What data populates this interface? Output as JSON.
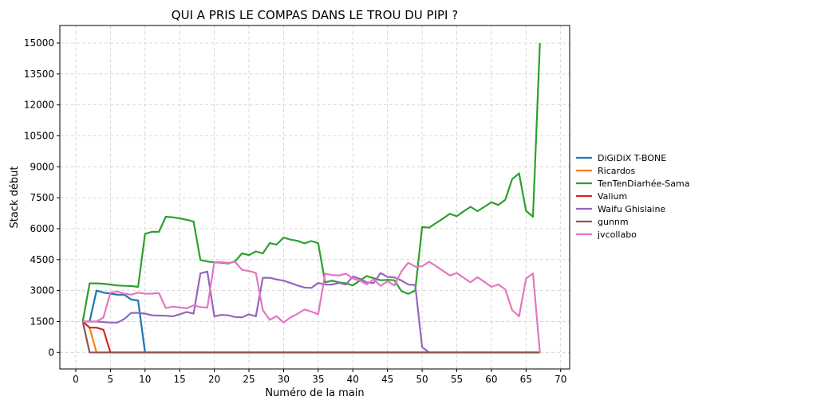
{
  "chart_data": {
    "type": "line",
    "title": "QUI A PRIS LE COMPAS DANS LE TROU DU PIPI ?",
    "xlabel": "Numéro de la main",
    "ylabel": "Stack début",
    "xlim": [
      -2.3,
      71.3
    ],
    "ylim": [
      -800,
      15850
    ],
    "xticks": [
      0,
      5,
      10,
      15,
      20,
      25,
      30,
      35,
      40,
      45,
      50,
      55,
      60,
      65,
      70
    ],
    "yticks": [
      0,
      1500,
      3000,
      4500,
      6000,
      7500,
      9000,
      10500,
      12000,
      13500,
      15000
    ],
    "grid": true,
    "legend_position": "right",
    "series": [
      {
        "name": "DiGiDiX T-BONE",
        "color": "#1f77b4",
        "x": [
          1,
          2,
          3,
          4,
          5,
          6,
          7,
          8,
          9,
          10,
          11,
          12,
          13,
          14,
          15,
          16,
          17,
          18,
          19,
          20,
          21,
          22,
          23,
          24,
          25,
          26,
          27,
          28,
          29,
          30,
          31,
          32,
          33,
          34,
          35,
          36,
          37,
          38,
          39,
          40,
          41,
          42,
          43,
          44,
          45,
          46,
          47,
          48,
          49,
          50,
          51,
          52,
          53,
          54,
          55,
          56,
          57,
          58,
          59,
          60,
          61,
          62,
          63,
          64,
          65,
          66,
          67
        ],
        "y": [
          1500,
          1500,
          3000,
          2900,
          2850,
          2800,
          2800,
          2570,
          2520,
          0,
          0,
          0,
          0,
          0,
          0,
          0,
          0,
          0,
          0,
          0,
          0,
          0,
          0,
          0,
          0,
          0,
          0,
          0,
          0,
          0,
          0,
          0,
          0,
          0,
          0,
          0,
          0,
          0,
          0,
          0,
          0,
          0,
          0,
          0,
          0,
          0,
          0,
          0,
          0,
          0,
          0,
          0,
          0,
          0,
          0,
          0,
          0,
          0,
          0,
          0,
          0,
          0,
          0,
          0,
          0,
          0,
          0
        ]
      },
      {
        "name": "Ricardos",
        "color": "#ff7f0e",
        "x": [
          1,
          2,
          3,
          4,
          5,
          6,
          7,
          8,
          9,
          10,
          11,
          12,
          13,
          14,
          15,
          16,
          17,
          18,
          19,
          20,
          21,
          22,
          23,
          24,
          25,
          26,
          27,
          28,
          29,
          30,
          31,
          32,
          33,
          34,
          35,
          36,
          37,
          38,
          39,
          40,
          41,
          42,
          43,
          44,
          45,
          46,
          47,
          48,
          49,
          50,
          51,
          52,
          53,
          54,
          55,
          56,
          57,
          58,
          59,
          60,
          61,
          62,
          63,
          64,
          65,
          66,
          67
        ],
        "y": [
          1500,
          1200,
          0,
          0,
          0,
          0,
          0,
          0,
          0,
          0,
          0,
          0,
          0,
          0,
          0,
          0,
          0,
          0,
          0,
          0,
          0,
          0,
          0,
          0,
          0,
          0,
          0,
          0,
          0,
          0,
          0,
          0,
          0,
          0,
          0,
          0,
          0,
          0,
          0,
          0,
          0,
          0,
          0,
          0,
          0,
          0,
          0,
          0,
          0,
          0,
          0,
          0,
          0,
          0,
          0,
          0,
          0,
          0,
          0,
          0,
          0,
          0,
          0,
          0,
          0,
          0,
          0
        ]
      },
      {
        "name": "TenTenDiarhée-Sama",
        "color": "#2ca02c",
        "x": [
          1,
          2,
          3,
          4,
          5,
          6,
          7,
          8,
          9,
          10,
          11,
          12,
          13,
          14,
          15,
          16,
          17,
          18,
          19,
          20,
          21,
          22,
          23,
          24,
          25,
          26,
          27,
          28,
          29,
          30,
          31,
          32,
          33,
          34,
          35,
          36,
          37,
          38,
          39,
          40,
          41,
          42,
          43,
          44,
          45,
          46,
          47,
          48,
          49,
          50,
          51,
          52,
          53,
          54,
          55,
          56,
          57,
          58,
          59,
          60,
          61,
          62,
          63,
          64,
          65,
          66,
          67
        ],
        "y": [
          1500,
          3350,
          3350,
          3330,
          3290,
          3250,
          3230,
          3220,
          3180,
          5750,
          5850,
          5850,
          6580,
          6550,
          6500,
          6430,
          6350,
          4480,
          4410,
          4370,
          4350,
          4310,
          4420,
          4800,
          4720,
          4900,
          4800,
          5300,
          5230,
          5570,
          5470,
          5410,
          5290,
          5400,
          5300,
          3400,
          3480,
          3400,
          3350,
          3250,
          3480,
          3700,
          3600,
          3500,
          3520,
          3500,
          2980,
          2840,
          3000,
          6080,
          6050,
          6270,
          6490,
          6720,
          6600,
          6840,
          7060,
          6850,
          7060,
          7280,
          7150,
          7400,
          8400,
          8680,
          6870,
          6580,
          15000
        ]
      },
      {
        "name": "Valium",
        "color": "#d62728",
        "x": [
          1,
          2,
          3,
          4,
          5,
          6,
          7,
          8,
          9,
          10,
          11,
          12,
          13,
          14,
          15,
          16,
          17,
          18,
          19,
          20,
          21,
          22,
          23,
          24,
          25,
          26,
          27,
          28,
          29,
          30,
          31,
          32,
          33,
          34,
          35,
          36,
          37,
          38,
          39,
          40,
          41,
          42,
          43,
          44,
          45,
          46,
          47,
          48,
          49,
          50,
          51,
          52,
          53,
          54,
          55,
          56,
          57,
          58,
          59,
          60,
          61,
          62,
          63,
          64,
          65,
          66,
          67
        ],
        "y": [
          1500,
          1200,
          1200,
          1100,
          0,
          0,
          0,
          0,
          0,
          0,
          0,
          0,
          0,
          0,
          0,
          0,
          0,
          0,
          0,
          0,
          0,
          0,
          0,
          0,
          0,
          0,
          0,
          0,
          0,
          0,
          0,
          0,
          0,
          0,
          0,
          0,
          0,
          0,
          0,
          0,
          0,
          0,
          0,
          0,
          0,
          0,
          0,
          0,
          0,
          0,
          0,
          0,
          0,
          0,
          0,
          0,
          0,
          0,
          0,
          0,
          0,
          0,
          0,
          0,
          0,
          0,
          0
        ]
      },
      {
        "name": "Waifu Ghislaine",
        "color": "#9467bd",
        "x": [
          1,
          2,
          3,
          4,
          5,
          6,
          7,
          8,
          9,
          10,
          11,
          12,
          13,
          14,
          15,
          16,
          17,
          18,
          19,
          20,
          21,
          22,
          23,
          24,
          25,
          26,
          27,
          28,
          29,
          30,
          31,
          32,
          33,
          34,
          35,
          36,
          37,
          38,
          39,
          40,
          41,
          42,
          43,
          44,
          45,
          46,
          47,
          48,
          49,
          50,
          51,
          52,
          53,
          54,
          55,
          56,
          57,
          58,
          59,
          60,
          61,
          62,
          63,
          64,
          65,
          66,
          67
        ],
        "y": [
          1500,
          1500,
          1500,
          1470,
          1450,
          1450,
          1620,
          1920,
          1920,
          1880,
          1800,
          1790,
          1780,
          1750,
          1850,
          1960,
          1880,
          3830,
          3920,
          1750,
          1820,
          1800,
          1720,
          1700,
          1850,
          1750,
          3620,
          3620,
          3540,
          3480,
          3370,
          3250,
          3150,
          3130,
          3370,
          3290,
          3290,
          3370,
          3290,
          3690,
          3570,
          3400,
          3370,
          3850,
          3660,
          3640,
          3490,
          3290,
          3270,
          260,
          0,
          0,
          0,
          0,
          0,
          0,
          0,
          0,
          0,
          0,
          0,
          0,
          0,
          0,
          0,
          0,
          0
        ]
      },
      {
        "name": "gunnm",
        "color": "#8c564b",
        "x": [
          1,
          2,
          3,
          4,
          5,
          6,
          7,
          8,
          9,
          10,
          11,
          12,
          13,
          14,
          15,
          16,
          17,
          18,
          19,
          20,
          21,
          22,
          23,
          24,
          25,
          26,
          27,
          28,
          29,
          30,
          31,
          32,
          33,
          34,
          35,
          36,
          37,
          38,
          39,
          40,
          41,
          42,
          43,
          44,
          45,
          46,
          47,
          48,
          49,
          50,
          51,
          52,
          53,
          54,
          55,
          56,
          57,
          58,
          59,
          60,
          61,
          62,
          63,
          64,
          65,
          66,
          67
        ],
        "y": [
          1500,
          0,
          0,
          0,
          0,
          0,
          0,
          0,
          0,
          0,
          0,
          0,
          0,
          0,
          0,
          0,
          0,
          0,
          0,
          0,
          0,
          0,
          0,
          0,
          0,
          0,
          0,
          0,
          0,
          0,
          0,
          0,
          0,
          0,
          0,
          0,
          0,
          0,
          0,
          0,
          0,
          0,
          0,
          0,
          0,
          0,
          0,
          0,
          0,
          0,
          0,
          0,
          0,
          0,
          0,
          0,
          0,
          0,
          0,
          0,
          0,
          0,
          0,
          0,
          0,
          0,
          0
        ]
      },
      {
        "name": "jvcollabo",
        "color": "#e377c2",
        "x": [
          1,
          2,
          3,
          4,
          5,
          6,
          7,
          8,
          9,
          10,
          11,
          12,
          13,
          14,
          15,
          16,
          17,
          18,
          19,
          20,
          21,
          22,
          23,
          24,
          25,
          26,
          27,
          28,
          29,
          30,
          31,
          32,
          33,
          34,
          35,
          36,
          37,
          38,
          39,
          40,
          41,
          42,
          43,
          44,
          45,
          46,
          47,
          48,
          49,
          50,
          51,
          52,
          53,
          54,
          55,
          56,
          57,
          58,
          59,
          60,
          61,
          62,
          63,
          64,
          65,
          66,
          67
        ],
        "y": [
          1500,
          1500,
          1500,
          1700,
          2900,
          2950,
          2850,
          2800,
          2900,
          2850,
          2850,
          2880,
          2150,
          2220,
          2180,
          2140,
          2280,
          2200,
          2170,
          4380,
          4380,
          4340,
          4390,
          4000,
          3950,
          3850,
          2050,
          1580,
          1760,
          1450,
          1700,
          1870,
          2080,
          1980,
          1850,
          3820,
          3750,
          3730,
          3820,
          3590,
          3480,
          3300,
          3550,
          3230,
          3450,
          3250,
          3920,
          4350,
          4160,
          4180,
          4400,
          4190,
          3960,
          3730,
          3850,
          3620,
          3400,
          3650,
          3420,
          3180,
          3300,
          3060,
          2060,
          1750,
          3580,
          3830,
          0
        ]
      }
    ]
  }
}
